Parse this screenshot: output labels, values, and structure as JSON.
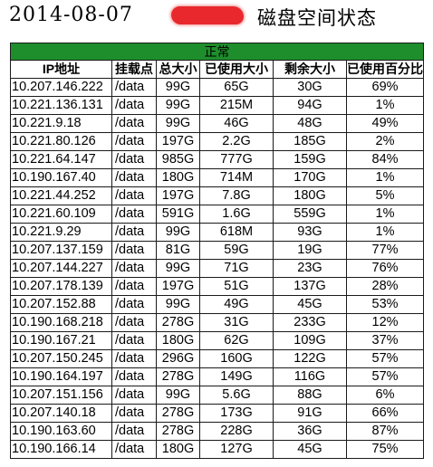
{
  "title": {
    "date": "2014-08-07",
    "caption": "磁盘空间状态"
  },
  "colors": {
    "status_bar": "#1e8e2c",
    "redaction": "#e8282d"
  },
  "table": {
    "status_label": "正常",
    "headers": [
      "IP地址",
      "挂载点",
      "总大小",
      "已使用大小",
      "剩余大小",
      "已使用百分比"
    ],
    "rows": [
      [
        "10.207.146.222",
        "/data",
        "99G",
        "65G",
        "30G",
        "69%"
      ],
      [
        "10.221.136.131",
        "/data",
        "99G",
        "215M",
        "94G",
        "1%"
      ],
      [
        "10.221.9.18",
        "/data",
        "99G",
        "46G",
        "48G",
        "49%"
      ],
      [
        "10.221.80.126",
        "/data",
        "197G",
        "2.2G",
        "185G",
        "2%"
      ],
      [
        "10.221.64.147",
        "/data",
        "985G",
        "777G",
        "159G",
        "84%"
      ],
      [
        "10.190.167.40",
        "/data",
        "180G",
        "714M",
        "170G",
        "1%"
      ],
      [
        "10.221.44.252",
        "/data",
        "197G",
        "7.8G",
        "180G",
        "5%"
      ],
      [
        "10.221.60.109",
        "/data",
        "591G",
        "1.6G",
        "559G",
        "1%"
      ],
      [
        "10.221.9.29",
        "/data",
        "99G",
        "618M",
        "93G",
        "1%"
      ],
      [
        "10.207.137.159",
        "/data",
        "81G",
        "59G",
        "19G",
        "77%"
      ],
      [
        "10.207.144.227",
        "/data",
        "99G",
        "71G",
        "23G",
        "76%"
      ],
      [
        "10.207.178.139",
        "/data",
        "197G",
        "51G",
        "137G",
        "28%"
      ],
      [
        "10.207.152.88",
        "/data",
        "99G",
        "49G",
        "45G",
        "53%"
      ],
      [
        "10.190.168.218",
        "/data",
        "278G",
        "31G",
        "233G",
        "12%"
      ],
      [
        "10.190.167.21",
        "/data",
        "180G",
        "62G",
        "109G",
        "37%"
      ],
      [
        "10.207.150.245",
        "/data",
        "296G",
        "160G",
        "122G",
        "57%"
      ],
      [
        "10.190.164.197",
        "/data",
        "278G",
        "149G",
        "116G",
        "57%"
      ],
      [
        "10.207.151.156",
        "/data",
        "99G",
        "5.6G",
        "88G",
        "6%"
      ],
      [
        "10.207.140.18",
        "/data",
        "278G",
        "173G",
        "91G",
        "66%"
      ],
      [
        "10.190.163.60",
        "/data",
        "278G",
        "228G",
        "36G",
        "87%"
      ],
      [
        "10.190.166.14",
        "/data",
        "180G",
        "127G",
        "45G",
        "75%"
      ]
    ]
  }
}
